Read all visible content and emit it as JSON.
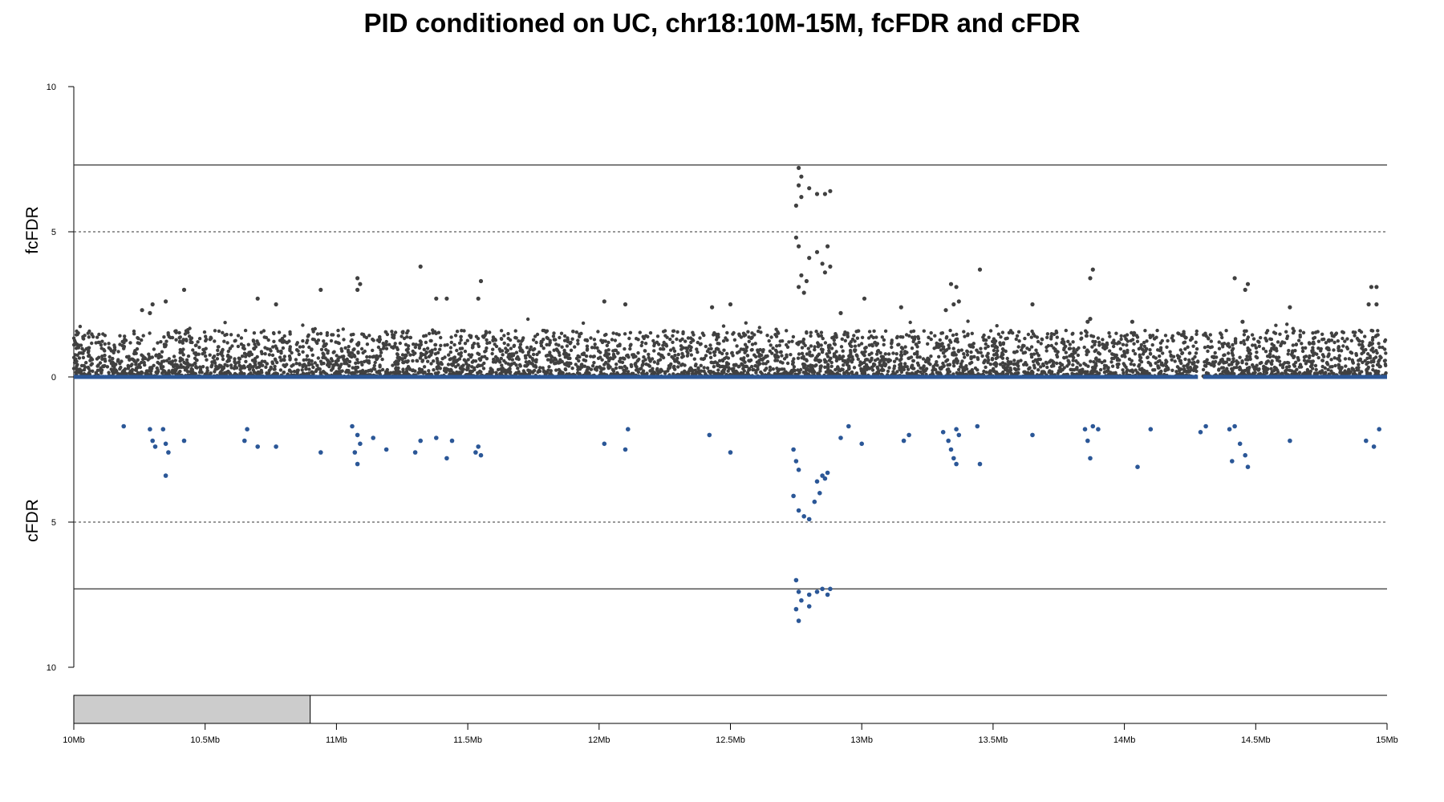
{
  "chart_data": {
    "type": "scatter",
    "title": "PID conditioned on UC, chr18:10M-15M, fcFDR and cFDR",
    "top_ylabel": "fcFDR",
    "bottom_ylabel": "cFDR",
    "ylim": [
      0,
      10
    ],
    "y_ticks": [
      "10",
      "5",
      "0",
      "5",
      "10"
    ],
    "xlim": [
      10000000,
      15000000
    ],
    "x_ticks": [
      "10Mb",
      "10.5Mb",
      "11Mb",
      "11.5Mb",
      "12Mb",
      "12.5Mb",
      "13Mb",
      "13.5Mb",
      "14Mb",
      "14.5Mb",
      "15Mb"
    ],
    "significance_line": 7.3,
    "suggestive_line": 5,
    "colors": {
      "top_points": "#404040",
      "bottom_points": "#2b5797",
      "baseline": "#2b5797",
      "ideogram_band": "#cccccc"
    },
    "ideogram_band_range": [
      10000000,
      10900000
    ],
    "series": [
      {
        "name": "fcFDR",
        "peaks": [
          [
            12760000,
            7.2
          ],
          [
            12770000,
            6.9
          ],
          [
            12760000,
            6.6
          ],
          [
            12770000,
            6.2
          ],
          [
            12750000,
            5.9
          ],
          [
            12800000,
            6.5
          ],
          [
            12830000,
            6.3
          ],
          [
            12860000,
            6.3
          ],
          [
            12880000,
            6.4
          ],
          [
            12750000,
            4.8
          ],
          [
            12760000,
            4.5
          ],
          [
            12800000,
            4.1
          ],
          [
            12830000,
            4.3
          ],
          [
            12870000,
            4.5
          ],
          [
            12850000,
            3.9
          ],
          [
            12880000,
            3.8
          ],
          [
            12770000,
            3.5
          ],
          [
            12790000,
            3.3
          ],
          [
            12760000,
            3.1
          ],
          [
            12780000,
            2.9
          ],
          [
            12860000,
            3.6
          ],
          [
            11320000,
            3.8
          ],
          [
            11080000,
            3.4
          ],
          [
            11090000,
            3.2
          ],
          [
            11080000,
            3.0
          ],
          [
            13450000,
            3.7
          ],
          [
            13880000,
            3.7
          ],
          [
            13870000,
            3.4
          ],
          [
            14420000,
            3.4
          ],
          [
            14470000,
            3.2
          ],
          [
            14460000,
            3.0
          ],
          [
            14940000,
            3.1
          ],
          [
            14960000,
            3.1
          ],
          [
            10420000,
            3.0
          ],
          [
            10940000,
            3.0
          ],
          [
            11550000,
            3.3
          ],
          [
            11540000,
            2.7
          ],
          [
            13340000,
            3.2
          ],
          [
            13360000,
            3.1
          ],
          [
            13370000,
            2.6
          ],
          [
            13350000,
            2.5
          ],
          [
            13320000,
            2.3
          ],
          [
            10300000,
            2.5
          ],
          [
            10350000,
            2.6
          ],
          [
            10290000,
            2.2
          ],
          [
            10260000,
            2.3
          ],
          [
            10700000,
            2.7
          ],
          [
            10770000,
            2.5
          ],
          [
            11420000,
            2.7
          ],
          [
            11380000,
            2.7
          ],
          [
            12020000,
            2.6
          ],
          [
            12100000,
            2.5
          ],
          [
            12430000,
            2.4
          ],
          [
            12500000,
            2.5
          ],
          [
            13010000,
            2.7
          ],
          [
            13150000,
            2.4
          ],
          [
            13650000,
            2.5
          ],
          [
            14630000,
            2.4
          ],
          [
            14930000,
            2.5
          ],
          [
            14960000,
            2.5
          ],
          [
            12920000,
            2.2
          ],
          [
            13870000,
            2.0
          ],
          [
            13860000,
            1.9
          ],
          [
            14030000,
            1.9
          ],
          [
            14450000,
            1.9
          ]
        ]
      },
      {
        "name": "cFDR",
        "points": [
          [
            10190000,
            1.7
          ],
          [
            10290000,
            1.8
          ],
          [
            10300000,
            2.2
          ],
          [
            10310000,
            2.4
          ],
          [
            10340000,
            1.8
          ],
          [
            10350000,
            2.3
          ],
          [
            10360000,
            2.6
          ],
          [
            10350000,
            3.4
          ],
          [
            10420000,
            2.2
          ],
          [
            10660000,
            1.8
          ],
          [
            10650000,
            2.2
          ],
          [
            10700000,
            2.4
          ],
          [
            10770000,
            2.4
          ],
          [
            10940000,
            2.6
          ],
          [
            11060000,
            1.7
          ],
          [
            11080000,
            2.0
          ],
          [
            11090000,
            2.3
          ],
          [
            11070000,
            2.6
          ],
          [
            11080000,
            3.0
          ],
          [
            11140000,
            2.1
          ],
          [
            11190000,
            2.5
          ],
          [
            11300000,
            2.6
          ],
          [
            11320000,
            2.2
          ],
          [
            11380000,
            2.1
          ],
          [
            11420000,
            2.8
          ],
          [
            11440000,
            2.2
          ],
          [
            11530000,
            2.6
          ],
          [
            11550000,
            2.7
          ],
          [
            11540000,
            2.4
          ],
          [
            12020000,
            2.3
          ],
          [
            12100000,
            2.5
          ],
          [
            12110000,
            1.8
          ],
          [
            12420000,
            2.0
          ],
          [
            12500000,
            2.6
          ],
          [
            12740000,
            2.5
          ],
          [
            12750000,
            2.9
          ],
          [
            12760000,
            3.2
          ],
          [
            12740000,
            4.1
          ],
          [
            12760000,
            4.6
          ],
          [
            12780000,
            4.8
          ],
          [
            12800000,
            4.9
          ],
          [
            12820000,
            4.3
          ],
          [
            12830000,
            3.6
          ],
          [
            12850000,
            3.4
          ],
          [
            12870000,
            3.3
          ],
          [
            12840000,
            4.0
          ],
          [
            12860000,
            3.5
          ],
          [
            12750000,
            7.0
          ],
          [
            12760000,
            7.4
          ],
          [
            12770000,
            7.7
          ],
          [
            12750000,
            8.0
          ],
          [
            12760000,
            8.4
          ],
          [
            12800000,
            7.5
          ],
          [
            12830000,
            7.4
          ],
          [
            12850000,
            7.3
          ],
          [
            12870000,
            7.5
          ],
          [
            12880000,
            7.3
          ],
          [
            12800000,
            7.9
          ],
          [
            12920000,
            2.1
          ],
          [
            12950000,
            1.7
          ],
          [
            13000000,
            2.3
          ],
          [
            13160000,
            2.2
          ],
          [
            13180000,
            2.0
          ],
          [
            13310000,
            1.9
          ],
          [
            13330000,
            2.2
          ],
          [
            13340000,
            2.5
          ],
          [
            13350000,
            2.8
          ],
          [
            13360000,
            3.0
          ],
          [
            13370000,
            2.0
          ],
          [
            13360000,
            1.8
          ],
          [
            13440000,
            1.7
          ],
          [
            13450000,
            3.0
          ],
          [
            13650000,
            2.0
          ],
          [
            13850000,
            1.8
          ],
          [
            13860000,
            2.2
          ],
          [
            13870000,
            2.8
          ],
          [
            13880000,
            1.7
          ],
          [
            13900000,
            1.8
          ],
          [
            14050000,
            3.1
          ],
          [
            14100000,
            1.8
          ],
          [
            14290000,
            1.9
          ],
          [
            14310000,
            1.7
          ],
          [
            14400000,
            1.8
          ],
          [
            14420000,
            1.7
          ],
          [
            14440000,
            2.3
          ],
          [
            14410000,
            2.9
          ],
          [
            14460000,
            2.7
          ],
          [
            14470000,
            3.1
          ],
          [
            14630000,
            2.2
          ],
          [
            14920000,
            2.2
          ],
          [
            14950000,
            2.4
          ],
          [
            14970000,
            1.8
          ]
        ]
      }
    ]
  }
}
